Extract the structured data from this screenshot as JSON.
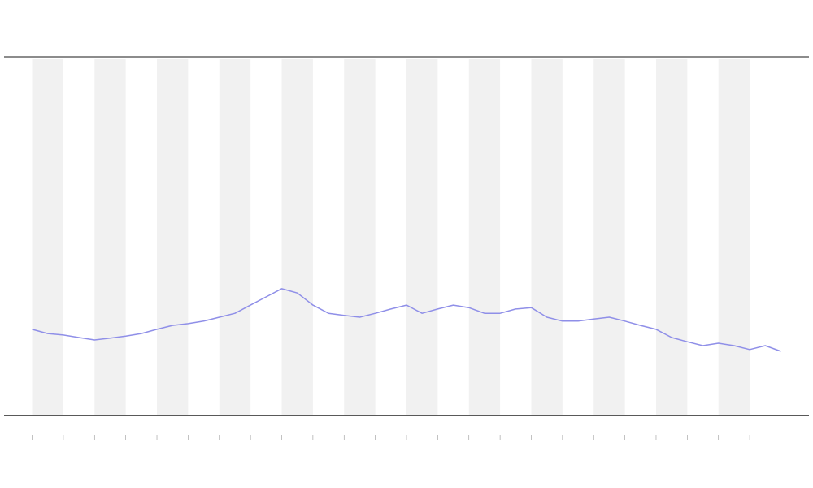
{
  "chart_data": {
    "type": "line",
    "x": [
      0,
      0.5,
      1,
      1.5,
      2,
      2.5,
      3,
      3.5,
      4,
      4.5,
      5,
      5.5,
      6,
      6.5,
      7,
      7.5,
      8,
      8.5,
      9,
      9.5,
      10,
      10.5,
      11,
      11.5,
      12,
      12.5,
      13,
      13.5,
      14,
      14.5,
      15,
      15.5,
      16,
      16.5,
      17,
      17.5,
      18,
      18.5,
      19,
      19.5,
      20,
      20.5,
      21,
      21.5,
      22,
      22.5,
      23,
      23.5,
      24
    ],
    "series": [
      {
        "color": "#8f8fe8",
        "values": [
          24.0,
          22.8,
          22.4,
          21.7,
          21.0,
          21.5,
          22.1,
          22.8,
          24.0,
          25.1,
          25.6,
          26.3,
          27.4,
          28.5,
          30.8,
          33.1,
          35.4,
          34.2,
          30.8,
          28.5,
          27.9,
          27.4,
          28.5,
          29.7,
          30.8,
          28.5,
          29.7,
          30.8,
          30.1,
          28.5,
          28.5,
          29.7,
          30.1,
          27.4,
          26.3,
          26.3,
          26.9,
          27.4,
          26.3,
          25.1,
          24.0,
          21.7,
          20.5,
          19.4,
          20.1,
          19.4,
          18.3,
          19.4,
          17.8
        ]
      }
    ],
    "xlim": [
      -0.9,
      24.9
    ],
    "xticks": [
      0,
      1,
      2,
      3,
      4,
      5,
      6,
      7,
      8,
      9,
      10,
      11,
      12,
      13,
      14,
      15,
      16,
      17,
      18,
      19,
      20,
      21,
      22,
      23
    ],
    "ylim": [
      0,
      100
    ],
    "shaded_bands": true
  }
}
